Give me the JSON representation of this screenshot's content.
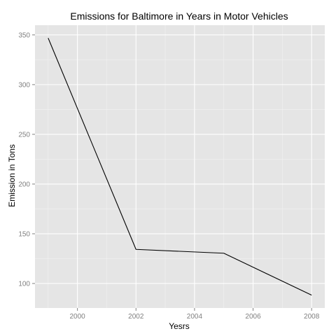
{
  "chart_data": {
    "type": "line",
    "title": "Emissions for Baltimore in Years in Motor Vehicles",
    "xlabel": "Yesrs",
    "ylabel": "Emission in Tons",
    "x": [
      1999,
      2002,
      2005,
      2008
    ],
    "series": [
      {
        "values": [
          346.82,
          134.31,
          130.43,
          88.28
        ]
      }
    ],
    "xlim": [
      1998.55,
      2008.45
    ],
    "ylim": [
      75.35,
      359.75
    ],
    "xticks": [
      2000,
      2002,
      2004,
      2006,
      2008
    ],
    "yticks": [
      100,
      150,
      200,
      250,
      300,
      350
    ],
    "xtick_labels": [
      "2000",
      "2002",
      "2004",
      "2006",
      "2008"
    ],
    "ytick_labels": [
      "100",
      "150",
      "200",
      "250",
      "300",
      "350"
    ],
    "grid": true,
    "legend": "none",
    "colors": {
      "panel_background": "#e5e5e5",
      "grid_major": "#ffffff",
      "grid_minor": "#f2f2f2",
      "line": "#000000",
      "tick_label": "#7f7f7f",
      "tick_mark": "#7f7f7f"
    }
  }
}
